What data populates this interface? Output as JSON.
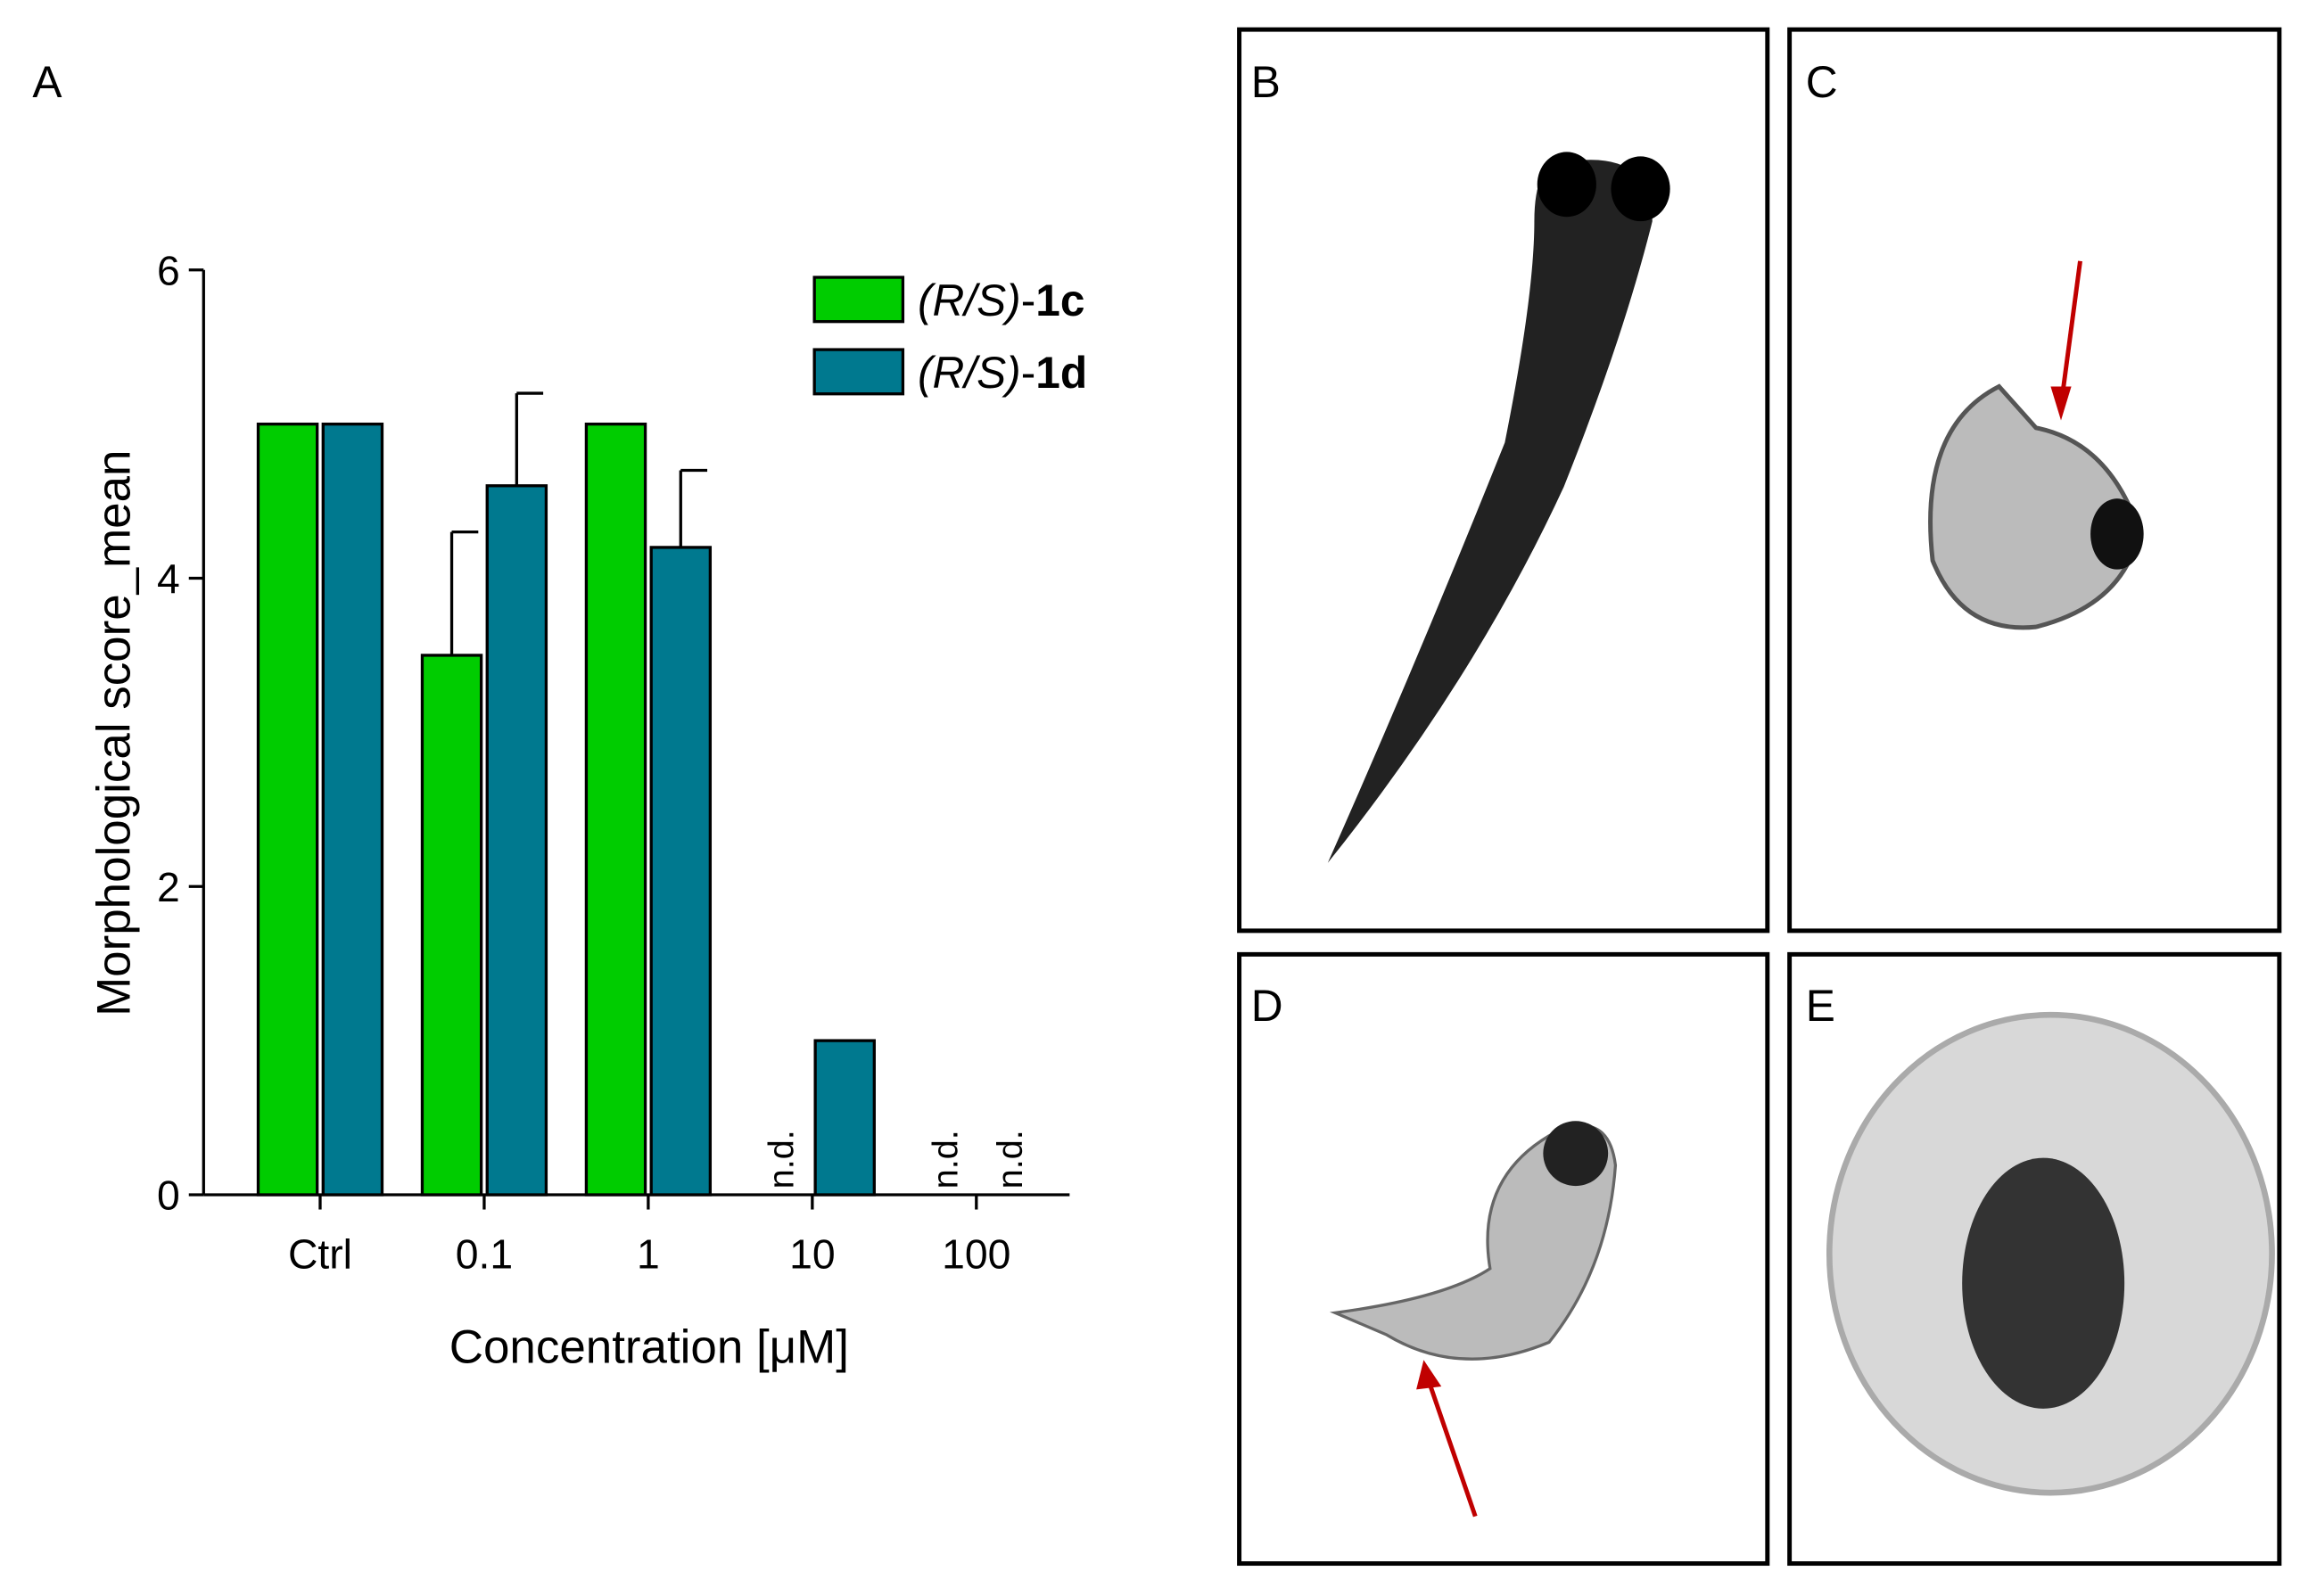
{
  "chart_data": {
    "type": "bar",
    "panel_label": "A",
    "y_label": "Morphological score_mean",
    "x_label": "Concentration [μM]",
    "categories": [
      "Ctrl",
      "0.1",
      "1",
      "10",
      "100"
    ],
    "series": [
      {
        "name": "(R/S)-1c",
        "color": "#00cc00",
        "values": [
          5,
          3.5,
          5,
          null,
          null
        ],
        "errors": [
          null,
          0.8,
          null,
          null,
          null
        ],
        "value_labels": [
          null,
          null,
          null,
          "n.d.",
          "n.d."
        ]
      },
      {
        "name": "(R/S)-1d",
        "color": "#00798f",
        "values": [
          5,
          4.6,
          4.2,
          1,
          null
        ],
        "errors": [
          null,
          0.6,
          0.5,
          null,
          null
        ],
        "value_labels": [
          null,
          null,
          null,
          null,
          "n.d."
        ]
      }
    ],
    "ylim": [
      0,
      6
    ],
    "yticks": [
      0,
      2,
      4,
      6
    ],
    "legend": "upper right"
  },
  "panels": [
    {
      "label": "B"
    },
    {
      "label": "C"
    },
    {
      "label": "D"
    },
    {
      "label": "E"
    }
  ]
}
